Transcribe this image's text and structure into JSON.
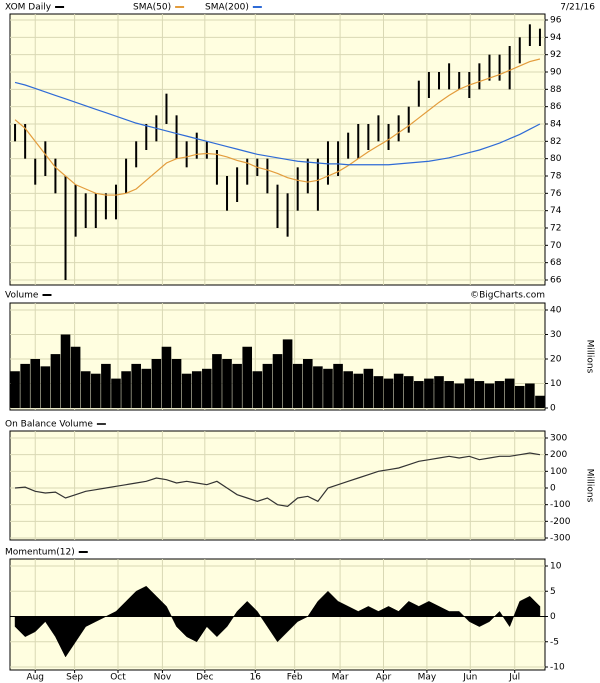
{
  "chart_data": [
    {
      "type": "hlbar",
      "date": "7/21/16",
      "x": [
        0,
        1,
        2,
        3,
        4,
        5,
        6,
        7,
        8,
        9,
        10,
        11,
        12,
        13,
        14,
        15,
        16,
        17,
        18,
        19,
        20,
        21,
        22,
        23,
        24,
        25,
        26,
        27,
        28,
        29,
        30,
        31,
        32,
        33,
        34,
        35,
        36,
        37,
        38,
        39,
        40,
        41,
        42,
        43,
        44,
        45,
        46,
        47,
        48,
        49,
        50,
        51,
        52
      ],
      "xlim": [
        -0.5,
        52.5
      ],
      "series": [
        {
          "name": "XOM Daily",
          "color": "#000000",
          "high": [
            84,
            84,
            80,
            82,
            80,
            78,
            77,
            76,
            76,
            76,
            77,
            80,
            82,
            84,
            85,
            87.5,
            85,
            82,
            83,
            82,
            81,
            78,
            79,
            80,
            80,
            80,
            77,
            76,
            79,
            80,
            80,
            82,
            82,
            83,
            84,
            84,
            85,
            84,
            85,
            86,
            89,
            90,
            90,
            91,
            90,
            90,
            91,
            92,
            92,
            93,
            94,
            95.5,
            95
          ],
          "low": [
            82,
            80,
            77,
            78,
            76,
            66,
            71,
            72,
            72,
            73,
            73,
            76,
            79,
            81,
            82,
            84,
            80,
            79,
            80,
            80,
            77,
            74,
            75,
            77,
            78,
            76,
            72,
            71,
            74,
            76,
            74,
            77,
            78,
            80,
            80,
            81,
            82,
            81,
            82,
            83,
            86,
            87,
            88,
            88,
            88,
            87,
            88,
            89,
            89,
            88,
            91,
            93,
            93
          ]
        },
        {
          "name": "SMA(50)",
          "color": "#e39c3c",
          "values": [
            84.5,
            83.5,
            82,
            80.5,
            79,
            78,
            77,
            76.5,
            76,
            75.8,
            75.8,
            76,
            76.5,
            77.5,
            78.5,
            79.5,
            80,
            80.2,
            80.5,
            80.6,
            80.5,
            80.2,
            79.8,
            79.5,
            79,
            78.7,
            78.3,
            77.8,
            77.5,
            77.3,
            77.5,
            78,
            78.5,
            79.2,
            80,
            80.8,
            81.5,
            82.2,
            83,
            83.8,
            84.7,
            85.6,
            86.5,
            87.3,
            88,
            88.5,
            88.9,
            89.3,
            89.7,
            90.2,
            90.7,
            91.2,
            91.5
          ]
        },
        {
          "name": "SMA(200)",
          "color": "#2f6bd6",
          "values": [
            88.8,
            88.5,
            88.1,
            87.7,
            87.3,
            86.9,
            86.5,
            86.1,
            85.7,
            85.3,
            84.9,
            84.5,
            84.1,
            83.8,
            83.5,
            83.2,
            82.9,
            82.6,
            82.3,
            82.0,
            81.7,
            81.4,
            81.1,
            80.8,
            80.5,
            80.3,
            80.1,
            79.9,
            79.7,
            79.6,
            79.5,
            79.4,
            79.4,
            79.3,
            79.3,
            79.3,
            79.3,
            79.3,
            79.4,
            79.5,
            79.6,
            79.7,
            79.9,
            80.1,
            80.4,
            80.7,
            81.0,
            81.4,
            81.8,
            82.3,
            82.8,
            83.4,
            84.0
          ]
        }
      ],
      "ylim": [
        66,
        96
      ],
      "yticks": [
        66,
        68,
        70,
        72,
        74,
        76,
        78,
        80,
        82,
        84,
        86,
        88,
        90,
        92,
        94,
        96
      ],
      "grid": true
    },
    {
      "type": "bar",
      "title": "Volume",
      "credit": "©BigCharts.com",
      "y_label": "Millions",
      "color": "#000000",
      "x": [
        0,
        1,
        2,
        3,
        4,
        5,
        6,
        7,
        8,
        9,
        10,
        11,
        12,
        13,
        14,
        15,
        16,
        17,
        18,
        19,
        20,
        21,
        22,
        23,
        24,
        25,
        26,
        27,
        28,
        29,
        30,
        31,
        32,
        33,
        34,
        35,
        36,
        37,
        38,
        39,
        40,
        41,
        42,
        43,
        44,
        45,
        46,
        47,
        48,
        49,
        50,
        51,
        52
      ],
      "xlim": [
        -0.5,
        52.5
      ],
      "values": [
        15,
        18,
        20,
        17,
        22,
        30,
        25,
        15,
        14,
        18,
        12,
        15,
        18,
        16,
        20,
        25,
        20,
        14,
        15,
        16,
        22,
        20,
        18,
        25,
        15,
        18,
        22,
        28,
        18,
        20,
        17,
        16,
        18,
        15,
        14,
        16,
        13,
        12,
        14,
        13,
        11,
        12,
        13,
        11,
        10,
        12,
        11,
        10,
        11,
        12,
        9,
        10,
        5
      ],
      "ylim": [
        0,
        40
      ],
      "yticks": [
        0,
        10,
        20,
        30,
        40
      ],
      "grid": true
    },
    {
      "type": "line",
      "title": "On Balance Volume",
      "y_label": "Millions",
      "color": "#333333",
      "x": [
        0,
        1,
        2,
        3,
        4,
        5,
        6,
        7,
        8,
        9,
        10,
        11,
        12,
        13,
        14,
        15,
        16,
        17,
        18,
        19,
        20,
        21,
        22,
        23,
        24,
        25,
        26,
        27,
        28,
        29,
        30,
        31,
        32,
        33,
        34,
        35,
        36,
        37,
        38,
        39,
        40,
        41,
        42,
        43,
        44,
        45,
        46,
        47,
        48,
        49,
        50,
        51,
        52
      ],
      "xlim": [
        -0.5,
        52.5
      ],
      "values": [
        0,
        5,
        -20,
        -30,
        -25,
        -60,
        -40,
        -20,
        -10,
        0,
        10,
        20,
        30,
        40,
        60,
        50,
        30,
        40,
        30,
        20,
        40,
        0,
        -40,
        -60,
        -80,
        -60,
        -100,
        -110,
        -60,
        -50,
        -80,
        0,
        20,
        40,
        60,
        80,
        100,
        110,
        120,
        140,
        160,
        170,
        180,
        190,
        180,
        190,
        170,
        180,
        190,
        190,
        200,
        210,
        200
      ],
      "ylim": [
        -300,
        300
      ],
      "yticks": [
        -300,
        -200,
        -100,
        0,
        100,
        200,
        300
      ],
      "grid": true
    },
    {
      "type": "area",
      "title": "Momentum(12)",
      "color": "#000000",
      "x": [
        0,
        1,
        2,
        3,
        4,
        5,
        6,
        7,
        8,
        9,
        10,
        11,
        12,
        13,
        14,
        15,
        16,
        17,
        18,
        19,
        20,
        21,
        22,
        23,
        24,
        25,
        26,
        27,
        28,
        29,
        30,
        31,
        32,
        33,
        34,
        35,
        36,
        37,
        38,
        39,
        40,
        41,
        42,
        43,
        44,
        45,
        46,
        47,
        48,
        49,
        50,
        51,
        52
      ],
      "xlim": [
        -0.5,
        52.5
      ],
      "xticks": [
        {
          "value": 2.0,
          "label": "Aug"
        },
        {
          "value": 5.9,
          "label": "Sep"
        },
        {
          "value": 10.2,
          "label": "Oct"
        },
        {
          "value": 14.6,
          "label": "Nov"
        },
        {
          "value": 18.8,
          "label": "Dec"
        },
        {
          "value": 23.8,
          "label": "16"
        },
        {
          "value": 27.7,
          "label": "Feb"
        },
        {
          "value": 32.2,
          "label": "Mar"
        },
        {
          "value": 36.5,
          "label": "Apr"
        },
        {
          "value": 40.8,
          "label": "May"
        },
        {
          "value": 45.1,
          "label": "Jun"
        },
        {
          "value": 49.5,
          "label": "Jul"
        }
      ],
      "values": [
        -2,
        -4,
        -3,
        -1,
        -4,
        -8,
        -5,
        -2,
        -1,
        0,
        1,
        3,
        5,
        6,
        4,
        2,
        -2,
        -4,
        -5,
        -2,
        -4,
        -2,
        1,
        3,
        1,
        -2,
        -5,
        -3,
        -1,
        0,
        3,
        5,
        3,
        2,
        1,
        2,
        1,
        2,
        1,
        3,
        2,
        3,
        2,
        1,
        1,
        -1,
        -2,
        -1,
        1,
        -2,
        3,
        4,
        2
      ],
      "ylim": [
        -10,
        10
      ],
      "yticks": [
        -10,
        -5,
        0,
        5,
        10
      ],
      "grid": true
    }
  ]
}
